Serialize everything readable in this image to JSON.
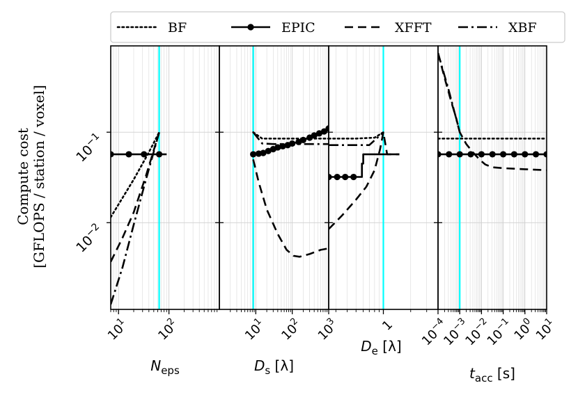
{
  "chart_data": {
    "type": "line",
    "title": "",
    "ylabel_line1": "Compute cost",
    "ylabel_line2": "[GFLOPS / station / voxel]",
    "yscale": "log",
    "ylim": [
      0.0011,
      0.9
    ],
    "y_ticks": [
      {
        "value": 0.1,
        "base": "10",
        "exp": "−1"
      },
      {
        "value": 0.01,
        "base": "10",
        "exp": "−2"
      }
    ],
    "legend": {
      "placement": "top",
      "entries": [
        {
          "name": "BF",
          "style": "dotted"
        },
        {
          "name": "EPIC",
          "style": "solid-marker"
        },
        {
          "name": "XFFT",
          "style": "dashed"
        },
        {
          "name": "XBF",
          "style": "dashdot"
        }
      ]
    },
    "grid": true,
    "panels": [
      {
        "xlabel_main": "N",
        "xlabel_sub": "eps",
        "xlabel_unit": "",
        "xscale": "log",
        "xlim": [
          7,
          1000
        ],
        "x_ticks": [
          {
            "value": 10,
            "base": "10",
            "exp": "1"
          },
          {
            "value": 100,
            "base": "10",
            "exp": "2"
          }
        ],
        "vline": 64,
        "series": {
          "BF": {
            "x": [
              7,
              20,
              40,
              64
            ],
            "y": [
              0.0115,
              0.03,
              0.06,
              0.1
            ]
          },
          "EPIC": {
            "x": [
              7,
              16,
              32,
              64,
              90
            ],
            "y": [
              0.057,
              0.057,
              0.057,
              0.057,
              0.057
            ],
            "markers": [
              7,
              16,
              32,
              64
            ]
          },
          "XFFT": {
            "x": [
              7,
              12,
              20,
              35,
              64
            ],
            "y": [
              0.0037,
              0.0068,
              0.013,
              0.033,
              0.1
            ]
          },
          "XBF": {
            "x": [
              7,
              12,
              20,
              35,
              64
            ],
            "y": [
              0.00125,
              0.0032,
              0.0095,
              0.03,
              0.1
            ]
          }
        }
      },
      {
        "xlabel_main": "D",
        "xlabel_sub": "s",
        "xlabel_unit": "[λ]",
        "xscale": "log",
        "xlim": [
          1,
          1000
        ],
        "x_ticks": [
          {
            "value": 10,
            "base": "10",
            "exp": "1"
          },
          {
            "value": 100,
            "base": "10",
            "exp": "2"
          },
          {
            "value": 1000,
            "base": "10",
            "exp": "3"
          }
        ],
        "vline": 8.5,
        "series": {
          "BF": {
            "x": [
              8.5,
              15,
              50,
              200,
              1000
            ],
            "y": [
              0.1,
              0.085,
              0.085,
              0.085,
              0.085
            ]
          },
          "EPIC": {
            "x": [
              8.5,
              12,
              16,
              22,
              30,
              40,
              55,
              75,
              100,
              150,
              200,
              300,
              400,
              550,
              750,
              1000
            ],
            "y": [
              0.057,
              0.058,
              0.059,
              0.062,
              0.065,
              0.068,
              0.07,
              0.072,
              0.075,
              0.078,
              0.082,
              0.087,
              0.092,
              0.097,
              0.102,
              0.11
            ],
            "markers": [
              8.5,
              12,
              16,
              22,
              30,
              40,
              55,
              75,
              100,
              150,
              200,
              300,
              400,
              550,
              750,
              1000
            ]
          },
          "XFFT": {
            "x": [
              8.5,
              12,
              20,
              40,
              70,
              110,
              160,
              300,
              600,
              1000
            ],
            "y": [
              0.05,
              0.028,
              0.014,
              0.0075,
              0.005,
              0.0043,
              0.0042,
              0.0045,
              0.005,
              0.0052
            ]
          },
          "XBF": {
            "x": [
              8.5,
              15,
              30,
              100,
              300,
              1000
            ],
            "y": [
              0.1,
              0.075,
              0.074,
              0.074,
              0.074,
              0.074
            ]
          }
        }
      },
      {
        "xlabel_main": "D",
        "xlabel_sub": "e",
        "xlabel_unit": "[λ]",
        "xscale": "log",
        "xlim": [
          0.25,
          4
        ],
        "x_ticks": [
          {
            "value": 1,
            "base": "1",
            "exp": ""
          }
        ],
        "vline": 1,
        "series": {
          "BF": {
            "x": [
              0.25,
              0.5,
              0.8,
              1
            ],
            "y": [
              0.085,
              0.085,
              0.087,
              0.1
            ]
          },
          "EPIC": {
            "x": [
              0.25,
              0.31,
              0.38,
              0.47,
              0.58,
              0.58,
              0.6,
              0.6,
              1,
              1.5
            ],
            "y": [
              0.032,
              0.032,
              0.032,
              0.032,
              0.032,
              0.045,
              0.045,
              0.057,
              0.057,
              0.057
            ],
            "markers": [
              0.25,
              0.31,
              0.38,
              0.47
            ]
          },
          "XFFT": {
            "x": [
              0.25,
              0.35,
              0.5,
              0.65,
              0.8,
              0.92,
              1,
              1.1,
              1.5
            ],
            "y": [
              0.0085,
              0.012,
              0.018,
              0.025,
              0.038,
              0.065,
              0.1,
              0.057,
              0.057
            ]
          },
          "XBF": {
            "x": [
              0.25,
              0.5,
              0.7,
              1
            ],
            "y": [
              0.072,
              0.072,
              0.072,
              0.1
            ]
          }
        }
      },
      {
        "xlabel_main": "t",
        "xlabel_sub": "acc",
        "xlabel_unit": "[s]",
        "xscale": "log",
        "xlim": [
          0.0001,
          10
        ],
        "x_ticks": [
          {
            "value": 0.0001,
            "base": "10",
            "exp": "−4"
          },
          {
            "value": 0.001,
            "base": "10",
            "exp": "−3"
          },
          {
            "value": 0.01,
            "base": "10",
            "exp": "−2"
          },
          {
            "value": 0.1,
            "base": "10",
            "exp": "−1"
          },
          {
            "value": 1,
            "base": "10",
            "exp": "0"
          },
          {
            "value": 10,
            "base": "10",
            "exp": "1"
          }
        ],
        "vline": 0.001,
        "series": {
          "BF": {
            "x": [
              0.0001,
              10
            ],
            "y": [
              0.085,
              0.085
            ]
          },
          "EPIC": {
            "x": [
              0.0001,
              0.0003,
              0.001,
              0.003,
              0.01,
              0.03,
              0.1,
              0.3,
              1,
              3,
              10
            ],
            "y": [
              0.057,
              0.057,
              0.057,
              0.057,
              0.057,
              0.057,
              0.057,
              0.057,
              0.057,
              0.057,
              0.057
            ],
            "markers": [
              0.0001,
              0.00032,
              0.001,
              0.0032,
              0.01,
              0.032,
              0.1,
              0.32,
              1,
              3.2,
              10
            ]
          },
          "XFFT": {
            "x": [
              0.0001,
              0.0002,
              0.0004,
              0.0007,
              0.001,
              0.002,
              0.004,
              0.008,
              0.015,
              0.03,
              0.1,
              1,
              10
            ],
            "y": [
              0.75,
              0.4,
              0.22,
              0.14,
              0.1,
              0.074,
              0.06,
              0.05,
              0.044,
              0.041,
              0.04,
              0.039,
              0.038
            ]
          },
          "XBF": {
            "x": [
              0.0001,
              0.0003,
              0.001
            ],
            "y": [
              0.75,
              0.3,
              0.1
            ]
          }
        }
      }
    ],
    "colors": {
      "lines": "#000000",
      "vline": "#00ffff",
      "grid": "#d9d9d9"
    }
  }
}
